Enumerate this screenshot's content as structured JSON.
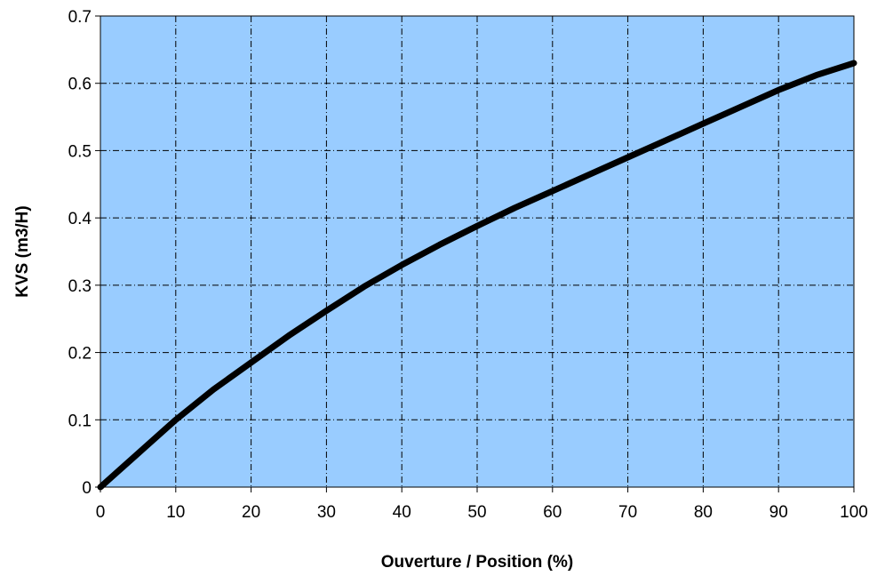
{
  "chart_data": {
    "type": "line",
    "xlabel": "Ouverture / Position (%)",
    "ylabel": "KVS (m3/H)",
    "xlim": [
      0,
      100
    ],
    "ylim": [
      0,
      0.7
    ],
    "x_ticks": [
      "0",
      "10",
      "20",
      "30",
      "40",
      "50",
      "60",
      "70",
      "80",
      "90",
      "100"
    ],
    "y_ticks": [
      "0",
      "0.1",
      "0.2",
      "0.3",
      "0.4",
      "0.5",
      "0.6",
      "0.7"
    ],
    "grid": true,
    "plot_background": "#99ccff",
    "line_color": "#000000",
    "series": [
      {
        "x": [
          0,
          5,
          10,
          15,
          20,
          25,
          30,
          35,
          40,
          45,
          50,
          55,
          60,
          65,
          70,
          75,
          80,
          85,
          90,
          95,
          100
        ],
        "y": [
          0,
          0.05,
          0.1,
          0.145,
          0.185,
          0.225,
          0.262,
          0.298,
          0.33,
          0.36,
          0.388,
          0.415,
          0.44,
          0.465,
          0.49,
          0.515,
          0.54,
          0.565,
          0.59,
          0.612,
          0.63
        ]
      }
    ]
  }
}
